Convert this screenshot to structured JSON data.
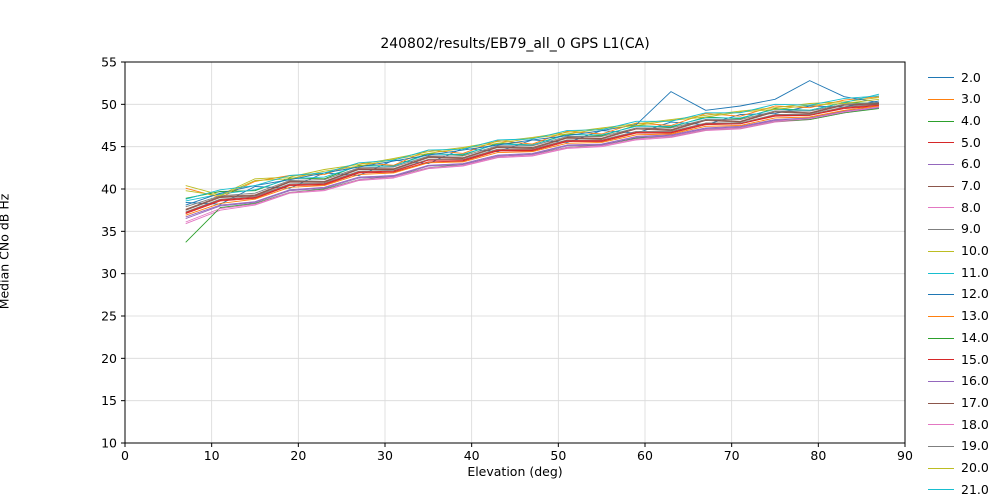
{
  "chart_data": {
    "type": "line",
    "title": "240802/results/EB79_all_0 GPS L1(CA)",
    "xlabel": "Elevation (deg)",
    "ylabel": "Median CNo dB Hz",
    "xlim": [
      0,
      90
    ],
    "ylim": [
      10,
      55
    ],
    "xticks": [
      0,
      10,
      20,
      30,
      40,
      50,
      60,
      70,
      80,
      90
    ],
    "yticks": [
      10,
      15,
      20,
      25,
      30,
      35,
      40,
      45,
      50,
      55
    ],
    "grid": true,
    "grid_color": "#d9d9d9",
    "legend_position": "right-outside",
    "x": [
      7,
      11,
      15,
      19,
      23,
      27,
      31,
      35,
      39,
      43,
      47,
      51,
      55,
      59,
      63,
      67,
      71,
      75,
      79,
      83,
      87
    ],
    "series": [
      {
        "name": "2.0",
        "color": "#1f77b4",
        "values": [
          38.4,
          38.2,
          40.3,
          40.1,
          41.9,
          41.6,
          43.4,
          43.0,
          44.8,
          44.4,
          45.8,
          45.5,
          46.9,
          46.6,
          47.9,
          47.6,
          48.8,
          48.9,
          49.8,
          49.7,
          50.4
        ]
      },
      {
        "name": "3.0",
        "color": "#ff7f0e",
        "values": [
          40.1,
          39.0,
          40.9,
          41.6,
          41.7,
          43.1,
          42.8,
          44.6,
          44.2,
          45.7,
          45.3,
          46.8,
          46.5,
          47.8,
          47.5,
          48.9,
          48.6,
          49.8,
          49.6,
          50.5,
          50.9
        ]
      },
      {
        "name": "4.0",
        "color": "#2ca02c",
        "values": [
          38.9,
          39.7,
          39.8,
          41.3,
          41.2,
          42.8,
          42.7,
          44.2,
          44.0,
          45.4,
          45.2,
          46.5,
          46.3,
          47.5,
          47.3,
          48.5,
          48.3,
          49.5,
          49.3,
          50.2,
          50.1
        ]
      },
      {
        "name": "5.0",
        "color": "#d62728",
        "values": [
          37.1,
          38.6,
          38.9,
          40.4,
          40.5,
          41.9,
          42.0,
          43.2,
          43.3,
          44.5,
          44.5,
          45.6,
          45.6,
          46.6,
          46.6,
          47.6,
          47.7,
          48.6,
          48.7,
          49.5,
          49.8
        ]
      },
      {
        "name": "6.0",
        "color": "#9467bd",
        "values": [
          36.7,
          38.1,
          38.5,
          39.9,
          40.2,
          41.4,
          41.6,
          42.8,
          43.0,
          44.0,
          44.2,
          45.2,
          45.3,
          46.2,
          46.4,
          47.2,
          47.4,
          48.2,
          48.4,
          49.2,
          49.7
        ]
      },
      {
        "name": "7.0",
        "color": "#8c564b",
        "values": [
          37.6,
          39.1,
          39.3,
          40.9,
          40.9,
          42.4,
          42.4,
          43.8,
          43.7,
          45.0,
          44.9,
          46.1,
          46.0,
          47.2,
          47.0,
          48.2,
          48.0,
          49.2,
          49.0,
          50.0,
          50.1
        ]
      },
      {
        "name": "8.0",
        "color": "#e377c2",
        "values": [
          35.9,
          37.5,
          38.1,
          39.5,
          39.8,
          41.0,
          41.3,
          42.4,
          42.7,
          43.7,
          43.9,
          44.8,
          45.0,
          45.8,
          46.1,
          46.9,
          47.1,
          47.9,
          48.2,
          49.0,
          49.6
        ]
      },
      {
        "name": "9.0",
        "color": "#7f7f7f",
        "values": [
          37.3,
          38.8,
          39.1,
          40.6,
          40.7,
          42.1,
          42.2,
          43.5,
          43.5,
          44.7,
          44.7,
          45.8,
          45.8,
          46.8,
          46.8,
          47.8,
          47.8,
          48.8,
          48.8,
          49.7,
          50.0
        ]
      },
      {
        "name": "10.0",
        "color": "#bcbd22",
        "values": [
          40.4,
          39.3,
          41.2,
          41.4,
          42.3,
          42.9,
          43.6,
          44.4,
          44.9,
          45.6,
          46.1,
          46.7,
          47.2,
          47.7,
          48.2,
          48.7,
          49.2,
          49.6,
          50.1,
          50.3,
          50.8
        ]
      },
      {
        "name": "11.0",
        "color": "#17becf",
        "values": [
          38.6,
          39.4,
          39.9,
          41.2,
          41.4,
          42.7,
          42.7,
          44.1,
          44.1,
          45.3,
          45.2,
          46.4,
          46.4,
          47.4,
          47.4,
          48.4,
          48.4,
          49.4,
          49.3,
          50.2,
          51.2
        ]
      },
      {
        "name": "12.0",
        "color": "#1f77b4",
        "values": [
          38.1,
          39.5,
          40.4,
          41.1,
          41.9,
          42.6,
          43.3,
          44.0,
          44.6,
          45.2,
          45.8,
          46.3,
          46.9,
          47.6,
          51.5,
          49.3,
          49.8,
          50.6,
          52.8,
          50.9,
          50.2
        ]
      },
      {
        "name": "13.0",
        "color": "#ff7f0e",
        "values": [
          36.9,
          38.3,
          38.8,
          40.2,
          40.4,
          41.7,
          41.9,
          43.1,
          43.2,
          44.3,
          44.4,
          45.4,
          45.5,
          46.4,
          46.5,
          47.4,
          47.5,
          48.4,
          48.5,
          49.3,
          49.8
        ]
      },
      {
        "name": "14.0",
        "color": "#2ca02c",
        "values": [
          33.7,
          37.8,
          38.3,
          39.6,
          40.0,
          41.1,
          41.5,
          42.5,
          42.9,
          43.8,
          44.1,
          44.9,
          45.2,
          46.0,
          46.2,
          47.0,
          47.2,
          48.0,
          48.2,
          49.0,
          49.5
        ]
      },
      {
        "name": "15.0",
        "color": "#d62728",
        "values": [
          37.2,
          38.7,
          39.0,
          40.5,
          40.6,
          42.0,
          42.1,
          43.4,
          43.4,
          44.6,
          44.6,
          45.7,
          45.7,
          46.7,
          46.7,
          47.7,
          47.7,
          48.7,
          48.7,
          49.6,
          49.9
        ]
      },
      {
        "name": "16.0",
        "color": "#9467bd",
        "values": [
          36.5,
          38.0,
          38.4,
          39.8,
          40.1,
          41.3,
          41.5,
          42.7,
          42.9,
          43.9,
          44.1,
          45.1,
          45.2,
          46.1,
          46.3,
          47.1,
          47.3,
          48.1,
          48.3,
          49.1,
          49.6
        ]
      },
      {
        "name": "17.0",
        "color": "#8c564b",
        "values": [
          37.5,
          39.0,
          39.2,
          40.8,
          40.8,
          42.3,
          42.3,
          43.7,
          43.6,
          44.9,
          44.8,
          46.0,
          45.9,
          47.1,
          46.9,
          48.1,
          47.9,
          49.1,
          48.9,
          49.9,
          50.0
        ]
      },
      {
        "name": "18.0",
        "color": "#e377c2",
        "values": [
          36.1,
          37.7,
          38.2,
          39.6,
          39.9,
          41.1,
          41.4,
          42.5,
          42.8,
          43.8,
          44.0,
          44.9,
          45.1,
          45.9,
          46.2,
          47.0,
          47.2,
          48.0,
          48.3,
          49.1,
          49.7
        ]
      },
      {
        "name": "19.0",
        "color": "#7f7f7f",
        "values": [
          37.9,
          39.2,
          39.5,
          41.0,
          41.1,
          42.5,
          42.6,
          43.9,
          43.9,
          45.1,
          45.1,
          46.2,
          46.2,
          47.2,
          47.2,
          48.2,
          48.2,
          49.2,
          49.2,
          50.0,
          50.2
        ]
      },
      {
        "name": "20.0",
        "color": "#bcbd22",
        "values": [
          39.8,
          39.2,
          41.0,
          41.2,
          42.1,
          42.7,
          43.5,
          44.2,
          44.8,
          45.4,
          46.0,
          46.5,
          47.1,
          47.5,
          48.1,
          48.5,
          49.1,
          49.4,
          49.9,
          50.1,
          50.6
        ]
      },
      {
        "name": "21.0",
        "color": "#17becf",
        "values": [
          38.8,
          39.9,
          40.4,
          41.6,
          41.9,
          43.1,
          43.4,
          44.6,
          44.7,
          45.8,
          45.9,
          46.9,
          47.0,
          48.0,
          48.0,
          49.0,
          49.0,
          50.0,
          49.9,
          50.7,
          51.0
        ]
      }
    ]
  }
}
